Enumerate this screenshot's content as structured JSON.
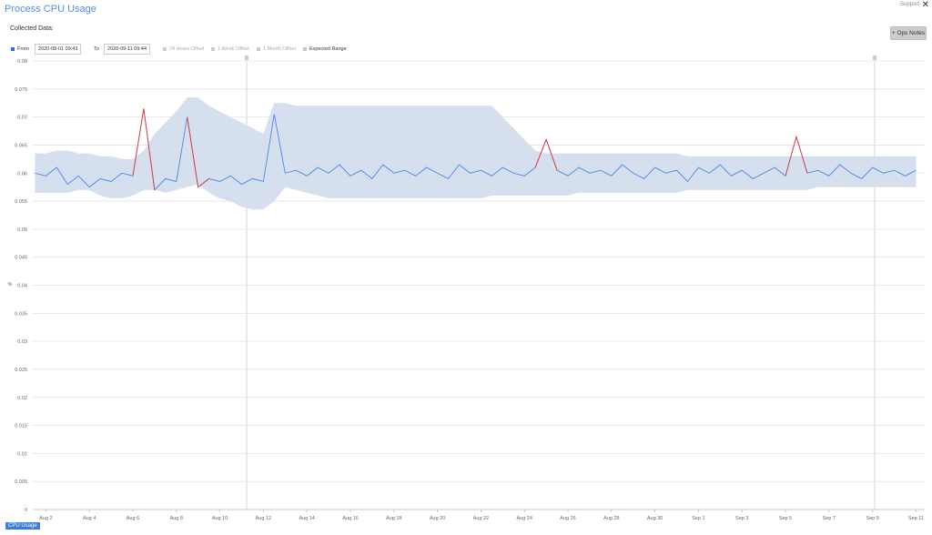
{
  "header": {
    "title": "Process CPU Usage",
    "support": "Support",
    "collected": "Collected Data:",
    "ops_notes": "+ Ops Notes"
  },
  "controls": {
    "from_label": "From",
    "from": "2020-08-01 09:43",
    "to_label": "To",
    "to": "2020-09-11 09:44",
    "offsets": [
      "24 Hours Offset",
      "1 Week Offset",
      "1 Month Offset"
    ]
  },
  "chart_data": {
    "type": "line",
    "ylabel": "%",
    "grid": true,
    "outlier_color": "#e53935",
    "xlim": [
      1.4,
      42.4
    ],
    "xticks": [
      {
        "value": 2,
        "label": "Aug 2"
      },
      {
        "value": 4,
        "label": "Aug 4"
      },
      {
        "value": 6,
        "label": "Aug 6"
      },
      {
        "value": 8,
        "label": "Aug 8"
      },
      {
        "value": 10,
        "label": "Aug 10"
      },
      {
        "value": 12,
        "label": "Aug 12"
      },
      {
        "value": 14,
        "label": "Aug 14"
      },
      {
        "value": 16,
        "label": "Aug 16"
      },
      {
        "value": 18,
        "label": "Aug 18"
      },
      {
        "value": 20,
        "label": "Aug 20"
      },
      {
        "value": 22,
        "label": "Aug 22"
      },
      {
        "value": 24,
        "label": "Aug 24"
      },
      {
        "value": 26,
        "label": "Aug 26"
      },
      {
        "value": 28,
        "label": "Aug 28"
      },
      {
        "value": 30,
        "label": "Aug 30"
      },
      {
        "value": 32,
        "label": "Sep 1"
      },
      {
        "value": 34,
        "label": "Sep 3"
      },
      {
        "value": 36,
        "label": "Sep 5"
      },
      {
        "value": 38,
        "label": "Sep 7"
      },
      {
        "value": 40,
        "label": "Sep 9"
      },
      {
        "value": 42,
        "label": "Sep 11"
      }
    ],
    "ylim": [
      0,
      0.08
    ],
    "yticks": [
      0,
      0.005,
      0.01,
      0.015,
      0.02,
      0.025,
      0.03,
      0.035,
      0.04,
      0.045,
      0.05,
      0.055,
      0.06,
      0.065,
      0.07,
      0.075,
      0.08
    ],
    "x": [
      1.5,
      2,
      2.5,
      3,
      3.5,
      4,
      4.5,
      5,
      5.5,
      6,
      6.5,
      7,
      7.5,
      8,
      8.5,
      9,
      9.5,
      10,
      10.5,
      11,
      11.5,
      12,
      12.5,
      13,
      13.5,
      14,
      14.5,
      15,
      15.5,
      16,
      16.5,
      17,
      17.5,
      18,
      18.5,
      19,
      19.5,
      20,
      20.5,
      21,
      21.5,
      22,
      22.5,
      23,
      23.5,
      24,
      24.5,
      25,
      25.5,
      26,
      26.5,
      27,
      27.5,
      28,
      28.5,
      29,
      29.5,
      30,
      30.5,
      31,
      31.5,
      32,
      32.5,
      33,
      33.5,
      34,
      34.5,
      35,
      35.5,
      36,
      36.5,
      37,
      37.5,
      38,
      38.5,
      39,
      39.5,
      40,
      40.5,
      41,
      41.5,
      42
    ],
    "series": [
      {
        "name": "CPU Usage",
        "color": "#4a86e8",
        "values": [
          0.06,
          0.0595,
          0.061,
          0.058,
          0.0595,
          0.0575,
          0.059,
          0.0585,
          0.06,
          0.0595,
          0.0715,
          0.057,
          0.059,
          0.0585,
          0.07,
          0.0575,
          0.059,
          0.0585,
          0.0595,
          0.058,
          0.059,
          0.0585,
          0.0705,
          0.06,
          0.0605,
          0.0595,
          0.061,
          0.06,
          0.0615,
          0.0595,
          0.0605,
          0.059,
          0.0615,
          0.06,
          0.0605,
          0.0595,
          0.061,
          0.06,
          0.059,
          0.0615,
          0.06,
          0.0605,
          0.0595,
          0.061,
          0.06,
          0.0595,
          0.061,
          0.066,
          0.0605,
          0.0595,
          0.061,
          0.06,
          0.0605,
          0.0595,
          0.0615,
          0.06,
          0.059,
          0.061,
          0.06,
          0.0605,
          0.0585,
          0.061,
          0.06,
          0.0615,
          0.0595,
          0.0605,
          0.059,
          0.06,
          0.061,
          0.0595,
          0.0665,
          0.06,
          0.0605,
          0.0595,
          0.0615,
          0.06,
          0.059,
          0.061,
          0.06,
          0.0605,
          0.0595,
          0.0605
        ]
      },
      {
        "name": "Expected Range",
        "color": "#d5dfee",
        "upper": [
          0.0635,
          0.0635,
          0.064,
          0.064,
          0.0635,
          0.0635,
          0.063,
          0.063,
          0.0625,
          0.0625,
          0.064,
          0.067,
          0.069,
          0.071,
          0.0735,
          0.0735,
          0.072,
          0.071,
          0.07,
          0.069,
          0.068,
          0.067,
          0.0725,
          0.0725,
          0.072,
          0.072,
          0.072,
          0.072,
          0.072,
          0.072,
          0.072,
          0.072,
          0.072,
          0.072,
          0.072,
          0.072,
          0.072,
          0.072,
          0.072,
          0.072,
          0.072,
          0.072,
          0.072,
          0.07,
          0.068,
          0.066,
          0.064,
          0.0635,
          0.0635,
          0.0635,
          0.0635,
          0.0635,
          0.0635,
          0.0635,
          0.0635,
          0.0635,
          0.0635,
          0.0635,
          0.0635,
          0.0635,
          0.063,
          0.063,
          0.063,
          0.063,
          0.063,
          0.063,
          0.063,
          0.063,
          0.063,
          0.063,
          0.063,
          0.063,
          0.063,
          0.063,
          0.063,
          0.063,
          0.063,
          0.063,
          0.063,
          0.063,
          0.063,
          0.063
        ],
        "lower": [
          0.0565,
          0.0565,
          0.0565,
          0.0565,
          0.057,
          0.057,
          0.056,
          0.0555,
          0.0555,
          0.056,
          0.057,
          0.057,
          0.0565,
          0.057,
          0.0575,
          0.058,
          0.0565,
          0.0555,
          0.055,
          0.054,
          0.0535,
          0.0535,
          0.055,
          0.0575,
          0.057,
          0.0565,
          0.056,
          0.0555,
          0.0555,
          0.0555,
          0.0555,
          0.0555,
          0.0555,
          0.0555,
          0.0555,
          0.0555,
          0.0555,
          0.0555,
          0.0555,
          0.0555,
          0.0555,
          0.0555,
          0.056,
          0.056,
          0.056,
          0.056,
          0.056,
          0.056,
          0.056,
          0.056,
          0.0565,
          0.0565,
          0.0565,
          0.0565,
          0.0565,
          0.0565,
          0.0565,
          0.0565,
          0.0565,
          0.0565,
          0.057,
          0.057,
          0.057,
          0.057,
          0.057,
          0.057,
          0.057,
          0.057,
          0.057,
          0.057,
          0.057,
          0.057,
          0.0575,
          0.0575,
          0.0575,
          0.0575,
          0.0575,
          0.0575,
          0.0575,
          0.0575,
          0.0575,
          0.0575
        ]
      }
    ]
  }
}
